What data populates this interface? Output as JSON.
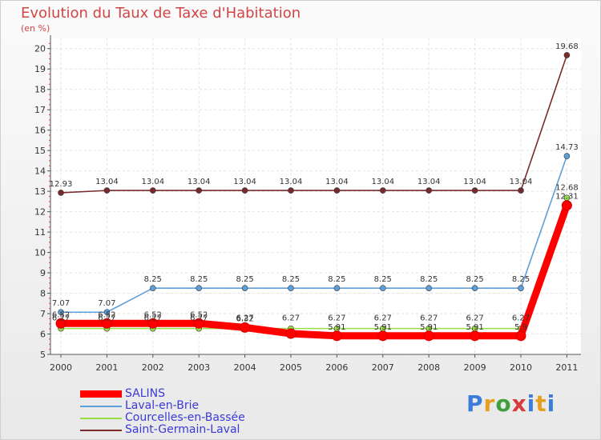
{
  "chart_data": {
    "type": "line",
    "title": "Evolution du Taux de Taxe d'Habitation",
    "subtitle": "(en %)",
    "xlabel": "",
    "ylabel": "",
    "ylim": [
      5,
      20.5
    ],
    "y_ticks": [
      5,
      6,
      7,
      8,
      9,
      10,
      11,
      12,
      13,
      14,
      15,
      16,
      17,
      18,
      19,
      20
    ],
    "categories": [
      "2000",
      "2001",
      "2002",
      "2003",
      "2004",
      "2005",
      "2006",
      "2007",
      "2008",
      "2009",
      "2010",
      "2011"
    ],
    "series": [
      {
        "name": "SALINS",
        "color": "#ff0000",
        "values": [
          6.52,
          6.52,
          6.52,
          6.52,
          6.32,
          6.02,
          5.91,
          5.91,
          5.91,
          5.91,
          5.91,
          12.31
        ],
        "labels": [
          "6.52",
          "6.52",
          "6.52",
          "6.52",
          "6.32",
          "",
          "5.91",
          "5.91",
          "5.91",
          "5.91",
          "5.9",
          "12.31"
        ]
      },
      {
        "name": "Laval-en-Brie",
        "color": "#5d9fd8",
        "values": [
          7.07,
          7.07,
          8.25,
          8.25,
          8.25,
          8.25,
          8.25,
          8.25,
          8.25,
          8.25,
          8.25,
          14.73
        ],
        "labels": [
          "7.07",
          "7.07",
          "8.25",
          "8.25",
          "8.25",
          "8.25",
          "8.25",
          "8.25",
          "8.25",
          "8.25",
          "8.25",
          "14.73"
        ]
      },
      {
        "name": "Courcelles-en-Bassée",
        "color": "#99dd44",
        "values": [
          6.27,
          6.27,
          6.27,
          6.27,
          6.27,
          6.27,
          6.27,
          6.27,
          6.27,
          6.27,
          6.27,
          12.68
        ],
        "labels": [
          "6.27",
          "6.27",
          "6.27",
          "6.27",
          "6.27",
          "6.27",
          "6.27",
          "6.27",
          "6.27",
          "6.27",
          "6.27",
          "12.68"
        ]
      },
      {
        "name": "Saint-Germain-Laval",
        "color": "#7a2a2a",
        "values": [
          12.93,
          13.04,
          13.04,
          13.04,
          13.04,
          13.04,
          13.04,
          13.04,
          13.04,
          13.04,
          13.04,
          19.68
        ],
        "labels": [
          "12.93",
          "13.04",
          "13.04",
          "13.04",
          "13.04",
          "13.04",
          "13.04",
          "13.04",
          "13.04",
          "13.04",
          "13.04",
          "19.68"
        ]
      }
    ]
  },
  "brand": {
    "letters": [
      "P",
      "r",
      "o",
      "x",
      "i",
      "t",
      "i"
    ]
  }
}
